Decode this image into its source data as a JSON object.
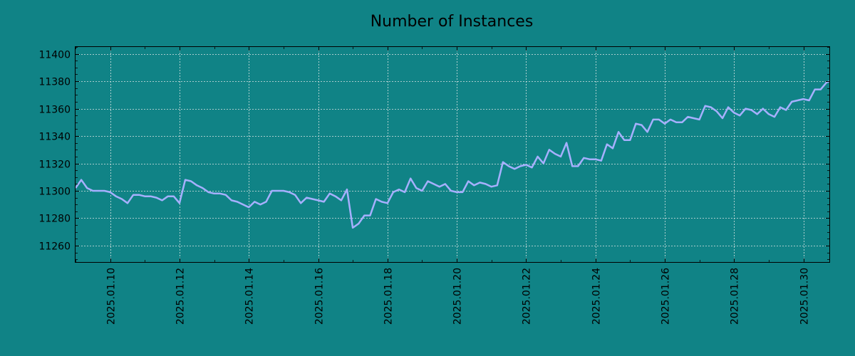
{
  "colors": {
    "background": "#108386",
    "line": "#a6b0ff",
    "grid": "#d9e3e3",
    "axis": "#000000"
  },
  "chart_data": {
    "type": "line",
    "title": "Number of Instances",
    "xlabel": "",
    "ylabel": "",
    "grid": true,
    "xlim": [
      "2025-01-09",
      "2025-01-30 18:00"
    ],
    "ylim": [
      11248,
      11405
    ],
    "y_ticks": [
      11260,
      11280,
      11300,
      11320,
      11340,
      11360,
      11380,
      11400
    ],
    "x_ticks": [
      "2025.01.10",
      "2025.01.12",
      "2025.01.14",
      "2025.01.16",
      "2025.01.18",
      "2025.01.20",
      "2025.01.22",
      "2025.01.24",
      "2025.01.26",
      "2025.01.28",
      "2025.01.30"
    ],
    "series": [
      {
        "x": [
          "2025-01-09 00:00",
          "2025-01-09 04:00",
          "2025-01-09 08:00",
          "2025-01-09 12:00",
          "2025-01-09 16:00",
          "2025-01-09 20:00",
          "2025-01-10 00:00",
          "2025-01-10 04:00",
          "2025-01-10 08:00",
          "2025-01-10 12:00",
          "2025-01-10 16:00",
          "2025-01-10 20:00",
          "2025-01-11 00:00",
          "2025-01-11 04:00",
          "2025-01-11 08:00",
          "2025-01-11 12:00",
          "2025-01-11 16:00",
          "2025-01-11 20:00",
          "2025-01-12 00:00",
          "2025-01-12 04:00",
          "2025-01-12 08:00",
          "2025-01-12 12:00",
          "2025-01-12 16:00",
          "2025-01-12 20:00",
          "2025-01-13 00:00",
          "2025-01-13 04:00",
          "2025-01-13 08:00",
          "2025-01-13 12:00",
          "2025-01-13 16:00",
          "2025-01-13 20:00",
          "2025-01-14 00:00",
          "2025-01-14 04:00",
          "2025-01-14 08:00",
          "2025-01-14 12:00",
          "2025-01-14 16:00",
          "2025-01-14 20:00",
          "2025-01-15 00:00",
          "2025-01-15 04:00",
          "2025-01-15 08:00",
          "2025-01-15 12:00",
          "2025-01-15 16:00",
          "2025-01-15 20:00",
          "2025-01-16 00:00",
          "2025-01-16 04:00",
          "2025-01-16 08:00",
          "2025-01-16 12:00",
          "2025-01-16 16:00",
          "2025-01-16 20:00",
          "2025-01-17 00:00",
          "2025-01-17 04:00",
          "2025-01-17 08:00",
          "2025-01-17 12:00",
          "2025-01-17 16:00",
          "2025-01-17 20:00",
          "2025-01-18 00:00",
          "2025-01-18 04:00",
          "2025-01-18 08:00",
          "2025-01-18 12:00",
          "2025-01-18 16:00",
          "2025-01-18 20:00",
          "2025-01-19 00:00",
          "2025-01-19 04:00",
          "2025-01-19 08:00",
          "2025-01-19 12:00",
          "2025-01-19 16:00",
          "2025-01-19 20:00",
          "2025-01-20 00:00",
          "2025-01-20 04:00",
          "2025-01-20 08:00",
          "2025-01-20 12:00",
          "2025-01-20 16:00",
          "2025-01-20 20:00",
          "2025-01-21 00:00",
          "2025-01-21 04:00",
          "2025-01-21 08:00",
          "2025-01-21 12:00",
          "2025-01-21 16:00",
          "2025-01-21 20:00",
          "2025-01-22 00:00",
          "2025-01-22 04:00",
          "2025-01-22 08:00",
          "2025-01-22 12:00",
          "2025-01-22 16:00",
          "2025-01-22 20:00",
          "2025-01-23 00:00",
          "2025-01-23 04:00",
          "2025-01-23 08:00",
          "2025-01-23 12:00",
          "2025-01-23 16:00",
          "2025-01-23 20:00",
          "2025-01-24 00:00",
          "2025-01-24 04:00",
          "2025-01-24 08:00",
          "2025-01-24 12:00",
          "2025-01-24 16:00",
          "2025-01-24 20:00",
          "2025-01-25 00:00",
          "2025-01-25 04:00",
          "2025-01-25 08:00",
          "2025-01-25 12:00",
          "2025-01-25 16:00",
          "2025-01-25 20:00",
          "2025-01-26 00:00",
          "2025-01-26 04:00",
          "2025-01-26 08:00",
          "2025-01-26 12:00",
          "2025-01-26 16:00",
          "2025-01-26 20:00",
          "2025-01-27 00:00",
          "2025-01-27 04:00",
          "2025-01-27 08:00",
          "2025-01-27 12:00",
          "2025-01-27 16:00",
          "2025-01-27 20:00",
          "2025-01-28 00:00",
          "2025-01-28 04:00",
          "2025-01-28 08:00",
          "2025-01-28 12:00",
          "2025-01-28 16:00",
          "2025-01-28 20:00",
          "2025-01-29 00:00",
          "2025-01-29 04:00",
          "2025-01-29 08:00",
          "2025-01-29 12:00",
          "2025-01-29 16:00",
          "2025-01-29 20:00",
          "2025-01-30 00:00",
          "2025-01-30 04:00",
          "2025-01-30 08:00",
          "2025-01-30 12:00",
          "2025-01-30 16:00",
          "2025-01-30 18:00"
        ],
        "values": [
          11302,
          11308,
          11302,
          11300,
          11300,
          11300,
          11299,
          11296,
          11294,
          11291,
          11297,
          11297,
          11296,
          11296,
          11295,
          11293,
          11296,
          11296,
          11291,
          11308,
          11307,
          11304,
          11302,
          11299,
          11298,
          11298,
          11297,
          11293,
          11292,
          11290,
          11288,
          11292,
          11290,
          11292,
          11300,
          11300,
          11300,
          11299,
          11297,
          11291,
          11295,
          11294,
          11293,
          11292,
          11298,
          11296,
          11293,
          11301,
          11273,
          11276,
          11282,
          11282,
          11294,
          11292,
          11291,
          11299,
          11301,
          11299,
          11309,
          11302,
          11300,
          11307,
          11305,
          11303,
          11305,
          11300,
          11299,
          11299,
          11307,
          11304,
          11306,
          11305,
          11303,
          11304,
          11321,
          11318,
          11316,
          11318,
          11319,
          11317,
          11325,
          11320,
          11330,
          11327,
          11325,
          11335,
          11318,
          11318,
          11324,
          11323,
          11323,
          11322,
          11334,
          11331,
          11343,
          11337,
          11337,
          11349,
          11348,
          11343,
          11352,
          11352,
          11349,
          11352,
          11350,
          11350,
          11354,
          11353,
          11352,
          11362,
          11361,
          11358,
          11353,
          11361,
          11357,
          11355,
          11360,
          11359,
          11356,
          11360,
          11356,
          11354,
          11361,
          11359,
          11365,
          11366,
          11367,
          11366,
          11374,
          11374,
          11379,
          11380
        ]
      }
    ]
  }
}
